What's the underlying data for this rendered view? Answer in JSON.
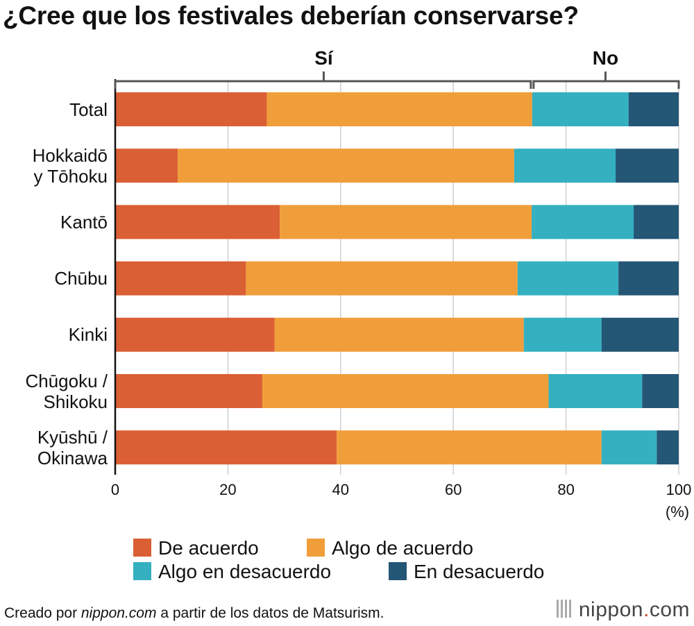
{
  "chart_data": {
    "type": "bar",
    "orientation": "horizontal",
    "stacked": true,
    "title": "¿Cree que los festivales deberían conservarse?",
    "categories": [
      "Total",
      "Hokkaidō\ny Tōhoku",
      "Kantō",
      "Chūbu",
      "Kinki",
      "Chūgoku /\nShikoku",
      "Kyūshū /\nOkinawa"
    ],
    "series": [
      {
        "name": "De acuerdo",
        "color": "#db5f34",
        "values": [
          26.9,
          11.1,
          29.2,
          23.2,
          28.3,
          26.1,
          39.3
        ]
      },
      {
        "name": "Algo de acuerdo",
        "color": "#f09e3a",
        "values": [
          47.1,
          59.7,
          44.7,
          48.2,
          44.2,
          50.8,
          47.0
        ]
      },
      {
        "name": "Algo en desacuerdo",
        "color": "#34b0c0",
        "values": [
          17.1,
          18.0,
          18.1,
          17.9,
          13.8,
          16.6,
          9.8
        ]
      },
      {
        "name": "En desacuerdo",
        "color": "#245675",
        "values": [
          8.9,
          11.2,
          8.0,
          10.7,
          13.7,
          6.5,
          3.9
        ]
      }
    ],
    "xlim": [
      0,
      100
    ],
    "xticks": [
      "0",
      "20",
      "40",
      "60",
      "80",
      "100"
    ],
    "xunit": "(%)",
    "grid": true,
    "bracket": {
      "yes_label": "Sí",
      "no_label": "No",
      "split_value": 74.0
    },
    "legend_position": "bottom"
  },
  "footer": {
    "credit_prefix": "Creado por ",
    "credit_site": "nippon.com",
    "credit_suffix": " a partir de los datos de Matsurism."
  },
  "brand": {
    "name": "nippon",
    "dot": ".",
    "tld": "com"
  }
}
